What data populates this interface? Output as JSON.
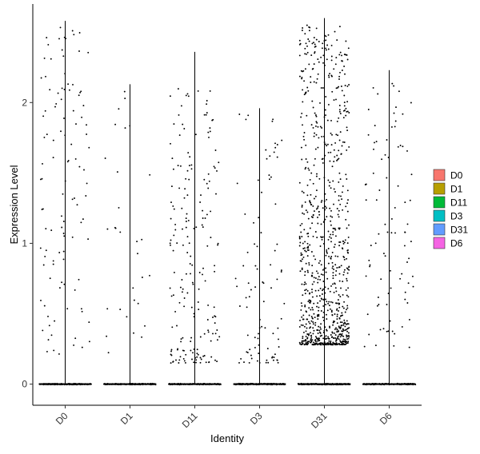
{
  "chart_data": {
    "type": "violin-jitter",
    "title": "",
    "xlabel": "Identity",
    "ylabel": "Expression Level",
    "ylim": [
      -0.15,
      2.7
    ],
    "yticks": [
      0,
      1,
      2
    ],
    "grid": false,
    "legend_placement": "right",
    "categories": [
      "D0",
      "D1",
      "D11",
      "D3",
      "D31",
      "D6"
    ],
    "series": [
      {
        "name": "D0",
        "color": "#F8766D",
        "max": 2.58,
        "zero_fraction": 0.86,
        "expressed_count": 110,
        "nonzero_range": [
          0.2,
          2.55
        ],
        "distribution": "uniform"
      },
      {
        "name": "D1",
        "color": "#B79F00",
        "max": 2.13,
        "zero_fraction": 0.95,
        "expressed_count": 30,
        "nonzero_range": [
          0.2,
          2.12
        ],
        "distribution": "uniform"
      },
      {
        "name": "D11",
        "color": "#00BA38",
        "max": 2.36,
        "zero_fraction": 0.85,
        "expressed_count": 190,
        "nonzero_range": [
          0.15,
          2.1
        ],
        "distribution": "low"
      },
      {
        "name": "D3",
        "color": "#00BFC4",
        "max": 1.96,
        "zero_fraction": 0.9,
        "expressed_count": 90,
        "nonzero_range": [
          0.15,
          1.95
        ],
        "distribution": "low"
      },
      {
        "name": "D31",
        "color": "#619CFF",
        "max": 2.6,
        "zero_fraction": 0.4,
        "expressed_count": 900,
        "nonzero_range": [
          0.28,
          2.55
        ],
        "distribution": "dense"
      },
      {
        "name": "D6",
        "color": "#F564E3",
        "max": 2.23,
        "zero_fraction": 0.88,
        "expressed_count": 90,
        "nonzero_range": [
          0.2,
          2.2
        ],
        "distribution": "uniform"
      }
    ]
  }
}
